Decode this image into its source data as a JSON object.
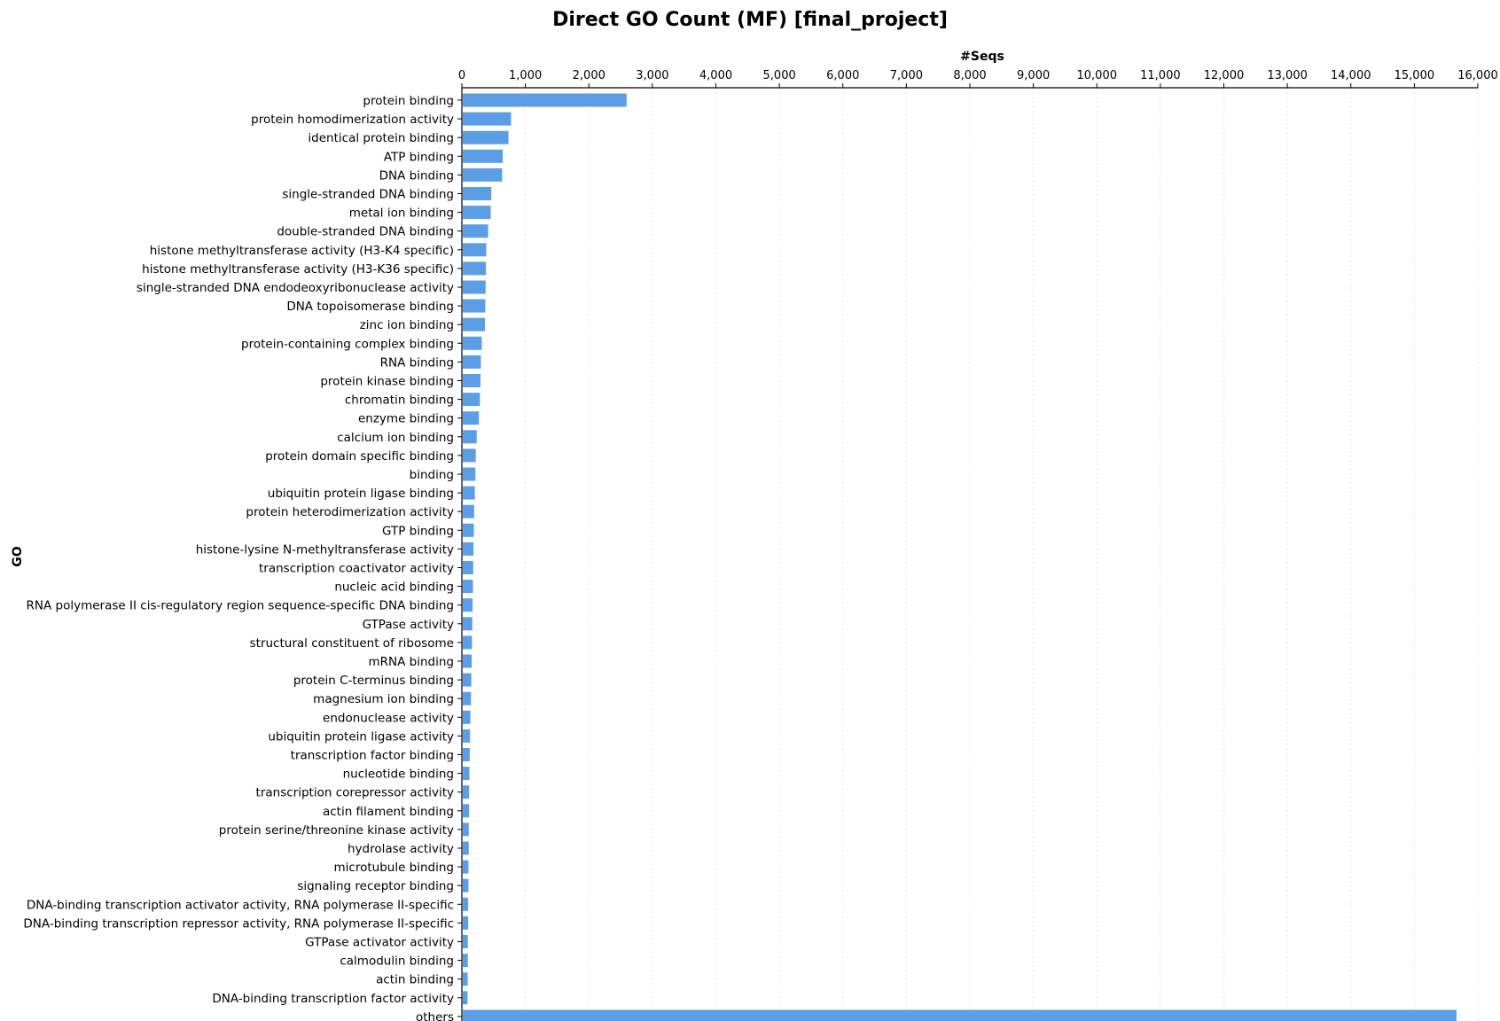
{
  "chart_data": {
    "type": "bar",
    "orientation": "horizontal",
    "title": "Direct GO Count (MF) [final_project]",
    "xlabel": "#Seqs",
    "ylabel": "GO",
    "xlim": [
      0,
      16000
    ],
    "x_ticks": [
      0,
      1000,
      2000,
      3000,
      4000,
      5000,
      6000,
      7000,
      8000,
      9000,
      10000,
      11000,
      12000,
      13000,
      14000,
      15000,
      16000
    ],
    "x_tick_labels": [
      "0",
      "1,000",
      "2,000",
      "3,000",
      "4,000",
      "5,000",
      "6,000",
      "7,000",
      "8,000",
      "9,000",
      "10,000",
      "11,000",
      "12,000",
      "13,000",
      "14,000",
      "15,000",
      "16,000"
    ],
    "x_axis_position": "top",
    "grid": true,
    "bar_color": "#5b9ee6",
    "categories": [
      "protein binding",
      "protein homodimerization activity",
      "identical protein binding",
      "ATP binding",
      "DNA binding",
      "single-stranded DNA binding",
      "metal ion binding",
      "double-stranded DNA binding",
      "histone methyltransferase activity (H3-K4 specific)",
      "histone methyltransferase activity (H3-K36 specific)",
      "single-stranded DNA endodeoxyribonuclease activity",
      "DNA topoisomerase binding",
      "zinc ion binding",
      "protein-containing complex binding",
      "RNA binding",
      "protein kinase binding",
      "chromatin binding",
      "enzyme binding",
      "calcium ion binding",
      "protein domain specific binding",
      "binding",
      "ubiquitin protein ligase binding",
      "protein heterodimerization activity",
      "GTP binding",
      "histone-lysine N-methyltransferase activity",
      "transcription coactivator activity",
      "nucleic acid binding",
      "RNA polymerase II cis-regulatory region sequence-specific DNA binding",
      "GTPase activity",
      "structural constituent of ribosome",
      "mRNA binding",
      "protein C-terminus binding",
      "magnesium ion binding",
      "endonuclease activity",
      "ubiquitin protein ligase activity",
      "transcription factor binding",
      "nucleotide binding",
      "transcription corepressor activity",
      "actin filament binding",
      "protein serine/threonine kinase activity",
      "hydrolase activity",
      "microtubule binding",
      "signaling receptor binding",
      "DNA-binding transcription activator activity, RNA polymerase II-specific",
      "DNA-binding transcription repressor activity, RNA polymerase II-specific",
      "GTPase activator activity",
      "calmodulin binding",
      "actin binding",
      "DNA-binding transcription factor activity",
      "others"
    ],
    "values": [
      2580,
      760,
      720,
      630,
      620,
      450,
      440,
      400,
      370,
      365,
      360,
      355,
      350,
      300,
      285,
      280,
      270,
      255,
      220,
      205,
      200,
      190,
      180,
      175,
      170,
      165,
      160,
      155,
      150,
      145,
      140,
      135,
      130,
      120,
      115,
      110,
      105,
      100,
      100,
      95,
      95,
      90,
      90,
      85,
      85,
      80,
      80,
      78,
      75,
      15650
    ]
  }
}
